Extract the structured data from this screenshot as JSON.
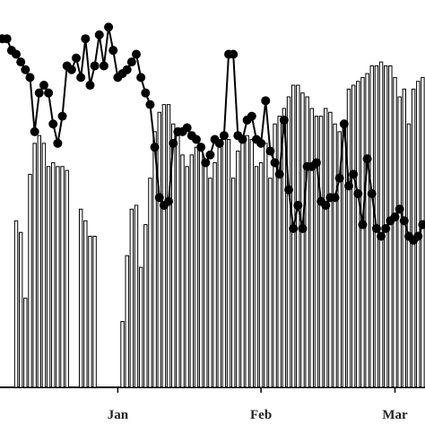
{
  "chart_data": {
    "type": "bar",
    "categories": [
      null,
      null,
      null,
      null,
      null,
      null,
      null,
      null,
      null,
      null,
      null,
      null,
      null,
      null,
      null,
      null,
      null,
      null,
      null,
      null,
      null,
      null,
      null,
      null,
      null,
      "Jan",
      null,
      null,
      null,
      null,
      null,
      null,
      null,
      null,
      null,
      null,
      null,
      null,
      null,
      null,
      null,
      null,
      null,
      null,
      null,
      null,
      null,
      null,
      null,
      null,
      null,
      null,
      null,
      null,
      null,
      null,
      "Feb",
      null,
      null,
      null,
      null,
      null,
      null,
      null,
      null,
      null,
      null,
      null,
      null,
      null,
      null,
      null,
      null,
      null,
      null,
      null,
      null,
      null,
      null,
      null,
      null,
      null,
      null,
      null,
      null,
      "Mar",
      null,
      null,
      null,
      null,
      null,
      null
    ],
    "ylim": [
      0,
      100
    ],
    "series": [
      {
        "type": "bar",
        "color": "#ffffff",
        "values": [
          null,
          null,
          null,
          43,
          40,
          23,
          55,
          63,
          65,
          63,
          57,
          58,
          57,
          57,
          56,
          null,
          null,
          46,
          43,
          39,
          39,
          null,
          null,
          null,
          null,
          null,
          17,
          34,
          46,
          47,
          31,
          42,
          54,
          66,
          71,
          73,
          73,
          68,
          65,
          60,
          57,
          60,
          62,
          62,
          57,
          54,
          58,
          62,
          65,
          64,
          54,
          61,
          65,
          65,
          64,
          57,
          58,
          63,
          54,
          68,
          70,
          72,
          75,
          78,
          78,
          76,
          75,
          72,
          70,
          70,
          72,
          71,
          68,
          66,
          69,
          77,
          78,
          79,
          80,
          81,
          83,
          83,
          84,
          83,
          83,
          80,
          75,
          77,
          68,
          77,
          79,
          80
        ]
      },
      {
        "type": "line",
        "color": "#000000",
        "values": [
          90,
          90,
          87,
          86,
          84,
          82,
          80,
          66,
          76,
          78,
          76,
          68,
          63,
          70,
          83,
          82,
          85,
          80,
          90,
          78,
          83,
          91,
          83,
          93,
          87,
          80,
          81,
          82,
          84,
          86,
          80,
          76,
          73,
          62,
          49,
          47,
          48,
          63,
          66,
          66,
          67,
          65,
          64,
          62,
          58,
          60,
          64,
          63,
          65,
          86,
          86,
          65,
          64,
          69,
          70,
          64,
          63,
          74,
          61,
          58,
          55,
          69,
          51,
          41,
          47,
          41,
          57,
          57,
          58,
          48,
          47,
          49,
          49,
          54,
          68,
          52,
          55,
          50,
          42,
          59,
          50,
          41,
          39,
          41,
          43,
          44,
          46,
          43,
          39,
          38,
          39,
          42
        ]
      }
    ]
  }
}
